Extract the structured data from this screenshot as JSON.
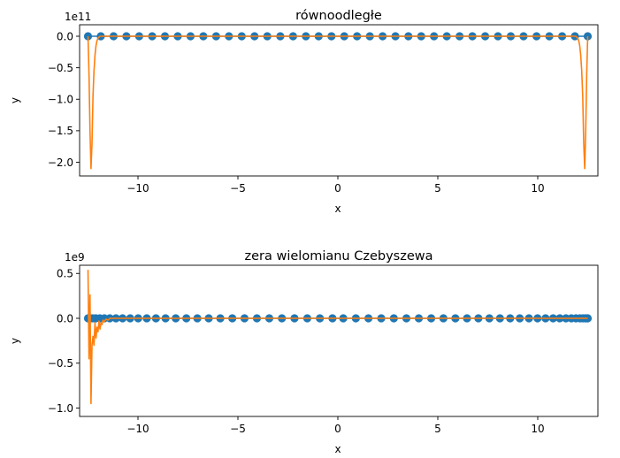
{
  "chart_data": [
    {
      "type": "line",
      "title": "równoodległe",
      "xlabel": "x",
      "ylabel": "y",
      "offset_label": "1e11",
      "xlim": [
        -12.5,
        12.5
      ],
      "ylim": [
        -2.12,
        0.0
      ],
      "x_ticks": [
        -10,
        -5,
        0,
        5,
        10
      ],
      "x_tick_labels": [
        "−10",
        "−5",
        "0",
        "5",
        "10"
      ],
      "y_ticks": [
        0.0,
        -0.5,
        -1.0,
        -1.5,
        -2.0
      ],
      "y_tick_labels": [
        "0.0",
        "−0.5",
        "−1.0",
        "−1.5",
        "−2.0"
      ],
      "grid": false,
      "series": [
        {
          "kind": "scatter",
          "color": "#1f77b4",
          "x": [
            -12.5,
            -11.86,
            -11.22,
            -10.58,
            -9.94,
            -9.29,
            -8.65,
            -8.01,
            -7.37,
            -6.73,
            -6.09,
            -5.45,
            -4.81,
            -4.17,
            -3.53,
            -2.88,
            -2.24,
            -1.6,
            -0.96,
            -0.32,
            0.32,
            0.96,
            1.6,
            2.24,
            2.88,
            3.53,
            4.17,
            4.81,
            5.45,
            6.09,
            6.73,
            7.37,
            8.01,
            8.65,
            9.29,
            9.94,
            10.58,
            11.22,
            11.86,
            12.5
          ],
          "y": [
            0,
            0,
            0,
            0,
            0,
            0,
            0,
            0,
            0,
            0,
            0,
            0,
            0,
            0,
            0,
            0,
            0,
            0,
            0,
            0,
            0,
            0,
            0,
            0,
            0,
            0,
            0,
            0,
            0,
            0,
            0,
            0,
            0,
            0,
            0,
            0,
            0,
            0,
            0,
            0
          ]
        },
        {
          "kind": "line",
          "color": "#ff7f0e",
          "x": [
            -12.5,
            -12.45,
            -12.4,
            -12.35,
            -12.3,
            -12.25,
            -12.2,
            -12.15,
            -12.1,
            -12.05,
            -12.0,
            -11.9,
            -11.8,
            11.8,
            11.9,
            12.0,
            12.05,
            12.1,
            12.15,
            12.2,
            12.25,
            12.3,
            12.35,
            12.4,
            12.45,
            12.5
          ],
          "y": [
            0.0,
            -0.6,
            -1.5,
            -2.1,
            -1.7,
            -0.95,
            -0.55,
            -0.3,
            -0.15,
            -0.07,
            -0.03,
            0.0,
            0.0,
            0.0,
            0.0,
            -0.03,
            -0.07,
            -0.15,
            -0.3,
            -0.55,
            -0.95,
            -1.7,
            -2.1,
            -1.5,
            -0.6,
            0.0
          ]
        }
      ]
    },
    {
      "type": "line",
      "title": "zera wielomianu Czebyszewa",
      "xlabel": "x",
      "ylabel": "y",
      "offset_label": "1e9",
      "xlim": [
        -12.5,
        12.5
      ],
      "ylim": [
        -0.95,
        0.55
      ],
      "x_ticks": [
        -10,
        -5,
        0,
        5,
        10
      ],
      "x_tick_labels": [
        "−10",
        "−5",
        "0",
        "5",
        "10"
      ],
      "y_ticks": [
        0.5,
        0.0,
        -0.5,
        -1.0
      ],
      "y_tick_labels": [
        "0.5",
        "0.0",
        "−0.5",
        "−1.0"
      ],
      "grid": false,
      "series": [
        {
          "kind": "scatter",
          "color": "#1f77b4",
          "x": [
            -12.5,
            -12.46,
            -12.38,
            -12.26,
            -12.11,
            -11.91,
            -11.68,
            -11.41,
            -11.1,
            -10.77,
            -10.39,
            -9.99,
            -9.56,
            -9.1,
            -8.62,
            -8.11,
            -7.58,
            -7.03,
            -6.46,
            -5.88,
            -5.28,
            -4.67,
            -4.05,
            -3.43,
            -2.8,
            -2.17,
            -1.53,
            -0.9,
            -0.27,
            0.27,
            0.9,
            1.53,
            2.17,
            2.8,
            3.43,
            4.05,
            4.67,
            5.28,
            5.88,
            6.46,
            7.03,
            7.58,
            8.11,
            8.62,
            9.1,
            9.56,
            9.99,
            10.39,
            10.77,
            11.1,
            11.41,
            11.68,
            11.91,
            12.11,
            12.26,
            12.38,
            12.46,
            12.5
          ],
          "y": [
            0,
            0,
            0,
            0,
            0,
            0,
            0,
            0,
            0,
            0,
            0,
            0,
            0,
            0,
            0,
            0,
            0,
            0,
            0,
            0,
            0,
            0,
            0,
            0,
            0,
            0,
            0,
            0,
            0,
            0,
            0,
            0,
            0,
            0,
            0,
            0,
            0,
            0,
            0,
            0,
            0,
            0,
            0,
            0,
            0,
            0,
            0,
            0,
            0,
            0,
            0,
            0,
            0,
            0,
            0,
            0,
            0,
            0
          ]
        },
        {
          "kind": "line",
          "color": "#ff7f0e",
          "x": [
            -12.5,
            -12.45,
            -12.4,
            -12.35,
            -12.3,
            -12.25,
            -12.2,
            -12.15,
            -12.1,
            -12.05,
            -12.0,
            -11.95,
            -11.9,
            -11.85,
            -11.8,
            -11.75,
            -11.7,
            -11.6,
            -11.5,
            -11.4,
            -11.2,
            -11.0,
            -10.5,
            -10.0,
            12.5
          ],
          "y": [
            0.54,
            -0.45,
            0.26,
            -0.95,
            -0.3,
            -0.2,
            -0.3,
            -0.05,
            -0.22,
            -0.1,
            -0.15,
            -0.03,
            -0.12,
            -0.05,
            -0.07,
            -0.02,
            -0.04,
            -0.01,
            -0.02,
            0.0,
            0.0,
            0.0,
            0.0,
            0.0,
            0.0
          ]
        }
      ]
    }
  ]
}
